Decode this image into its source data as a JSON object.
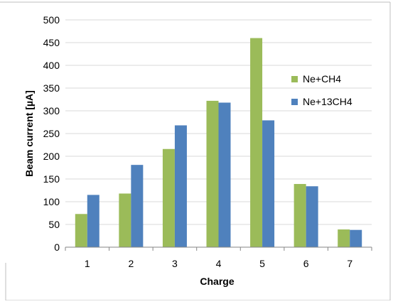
{
  "chart_data": {
    "type": "bar",
    "title": "",
    "xlabel": "Charge",
    "ylabel": "Beam current [µA]",
    "categories": [
      "1",
      "2",
      "3",
      "4",
      "5",
      "6",
      "7"
    ],
    "ylim": [
      0,
      500
    ],
    "yticks": [
      "0",
      "50",
      "100",
      "150",
      "200",
      "250",
      "300",
      "350",
      "400",
      "450",
      "500"
    ],
    "grid": true,
    "legend_position": "right",
    "series": [
      {
        "name": "Ne+CH4",
        "color": "#9BBB59",
        "values": [
          73,
          118,
          216,
          322,
          460,
          139,
          39
        ]
      },
      {
        "name": "Ne+13CH4",
        "color": "#4F81BD",
        "values": [
          115,
          181,
          268,
          318,
          279,
          134,
          38
        ]
      }
    ]
  }
}
